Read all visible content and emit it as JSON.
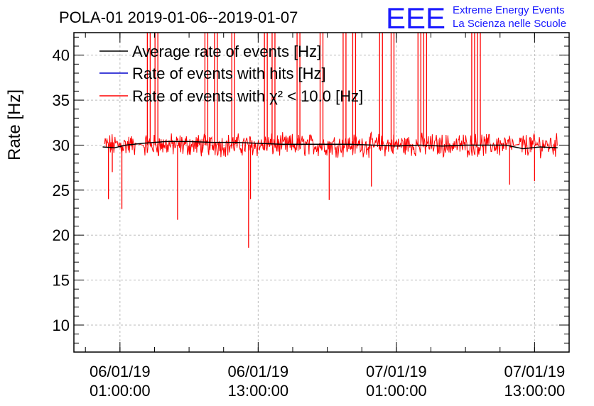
{
  "header": {
    "title": "POLA-01 2019-01-06--2019-01-07",
    "logo_text": "EEE",
    "logo_line1": "Extreme Energy Events",
    "logo_line2": "La Scienza nelle Scuole",
    "logo_color": "#1a1aff"
  },
  "chart_data": {
    "type": "line",
    "title": "POLA-01 2019-01-06--2019-01-07",
    "ylabel": "Rate [Hz]",
    "xlabel": "",
    "ylim": [
      7,
      42.5
    ],
    "xlim": [
      "2019-01-05 21:00:00",
      "2019-01-07 16:00:00"
    ],
    "yticks": [
      10,
      15,
      20,
      25,
      30,
      35,
      40
    ],
    "xticks": [
      {
        "value": "2019-01-06 01:00:00",
        "line1": "06/01/19",
        "line2": "01:00:00"
      },
      {
        "value": "2019-01-06 13:00:00",
        "line1": "06/01/19",
        "line2": "13:00:00"
      },
      {
        "value": "2019-01-07 01:00:00",
        "line1": "07/01/19",
        "line2": "01:00:00"
      },
      {
        "value": "2019-01-07 13:00:00",
        "line1": "07/01/19",
        "line2": "13:00:00"
      }
    ],
    "grid": true,
    "legend_position": "top-left",
    "series": [
      {
        "name": "Average rate of events [Hz]",
        "color": "#000000",
        "x": [
          "2019-01-05 23:30:00",
          "2019-01-06 00:30:00",
          "2019-01-06 01:30:00",
          "2019-01-06 03:00:00",
          "2019-01-06 05:00:00",
          "2019-01-06 07:00:00",
          "2019-01-06 09:00:00",
          "2019-01-06 11:00:00",
          "2019-01-06 13:00:00",
          "2019-01-06 15:00:00",
          "2019-01-06 17:00:00",
          "2019-01-06 19:00:00",
          "2019-01-06 21:00:00",
          "2019-01-06 23:00:00",
          "2019-01-07 01:00:00",
          "2019-01-07 03:00:00",
          "2019-01-07 05:00:00",
          "2019-01-07 07:00:00",
          "2019-01-07 09:00:00",
          "2019-01-07 10:30:00",
          "2019-01-07 12:00:00",
          "2019-01-07 13:30:00",
          "2019-01-07 15:00:00"
        ],
        "values": [
          29.8,
          29.7,
          30.0,
          30.2,
          30.4,
          30.4,
          30.3,
          30.3,
          30.2,
          30.1,
          30.1,
          30.1,
          30.1,
          30.0,
          29.9,
          30.0,
          29.9,
          30.0,
          30.0,
          30.0,
          29.6,
          29.8,
          29.7
        ]
      },
      {
        "name": "Rate of events with hits [Hz]",
        "color": "#0000cc",
        "x": [],
        "values": []
      },
      {
        "name": "Rate of events with χ² < 10.0 [Hz]",
        "color": "#ff0000",
        "x": [
          "2019-01-05 23:30:00",
          "2019-01-07 15:00:00"
        ],
        "values": [
          30.0,
          30.0
        ],
        "note_visible_features": "noisy trace around 29-31 Hz from 06/01/19 ~00:00 to 07/01/19 ~15:00 with downward spikes near 24, 23, 21.7, 18.6, 24 and upward spikes past 42"
      }
    ],
    "spikes_down": [
      {
        "x": "2019-01-06 00:00:00",
        "y": 24.0
      },
      {
        "x": "2019-01-06 00:20:00",
        "y": 27.0
      },
      {
        "x": "2019-01-06 01:10:00",
        "y": 22.9
      },
      {
        "x": "2019-01-06 06:00:00",
        "y": 21.7
      },
      {
        "x": "2019-01-06 12:10:00",
        "y": 18.6
      },
      {
        "x": "2019-01-06 12:20:00",
        "y": 24.0
      },
      {
        "x": "2019-01-06 19:10:00",
        "y": 23.9
      },
      {
        "x": "2019-01-06 22:50:00",
        "y": 25.4
      },
      {
        "x": "2019-01-07 10:50:00",
        "y": 25.6
      },
      {
        "x": "2019-01-07 13:00:00",
        "y": 26.0
      }
    ],
    "spikes_up": [
      "2019-01-06 03:30:00",
      "2019-01-06 04:10:00",
      "2019-01-06 08:30:00",
      "2019-01-06 09:20:00",
      "2019-01-06 10:50:00",
      "2019-01-06 13:40:00",
      "2019-01-06 14:20:00",
      "2019-01-06 16:30:00",
      "2019-01-06 18:30:00",
      "2019-01-06 20:30:00",
      "2019-01-06 21:20:00",
      "2019-01-06 23:40:00",
      "2019-01-07 00:40:00",
      "2019-01-07 03:00:00",
      "2019-01-07 03:30:00",
      "2019-01-07 07:40:00",
      "2019-01-07 08:10:00"
    ]
  }
}
